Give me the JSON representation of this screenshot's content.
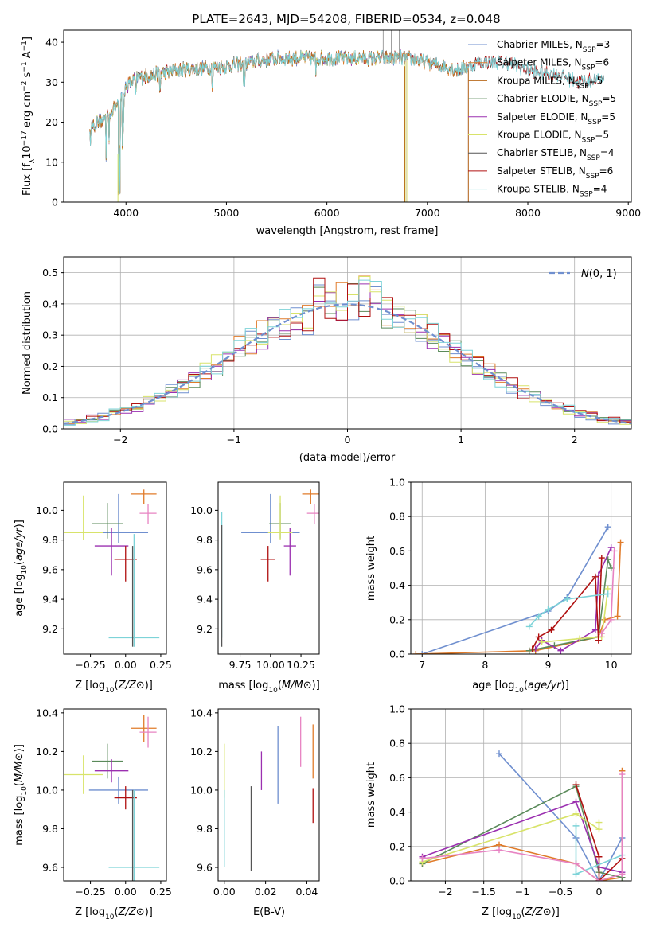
{
  "figure": {
    "title": "PLATE=2643, MJD=54208, FIBERID=0534, z=0.048"
  },
  "colors": {
    "Chabrier MILES": "#6f8fcf",
    "Salpeter MILES": "#e07b2a",
    "Kroupa MILES": "#b86a1c",
    "Chabrier ELODIE": "#5a8a5a",
    "Salpeter ELODIE": "#9b30b0",
    "Kroupa ELODIE": "#d8e36a",
    "Chabrier STELIB": "#555555",
    "Salpeter STELIB": "#b01010",
    "Kroupa STELIB": "#7dd3d8",
    "pink": "#e783c2"
  },
  "chart_data": [
    {
      "type": "line",
      "title": "PLATE=2643, MJD=54208, FIBERID=0534, z=0.048",
      "xlabel": "wavelength [Angstrom, rest frame]",
      "ylabel_parts": [
        "Flux [f",
        "λ",
        "10",
        "−17",
        " erg cm",
        "−2",
        " s",
        "−1",
        " A",
        "−1",
        "]"
      ],
      "xlim": [
        3380,
        9030
      ],
      "ylim": [
        0,
        43
      ],
      "xticks": [
        4000,
        5000,
        6000,
        7000,
        8000,
        9000
      ],
      "yticks": [
        0,
        10,
        20,
        30,
        40
      ],
      "legend_position": "top-right",
      "legend": [
        {
          "model": "Chabrier MILES",
          "n": "3"
        },
        {
          "model": "Salpeter MILES",
          "n": "6"
        },
        {
          "model": "Kroupa MILES",
          "n": "5"
        },
        {
          "model": "Chabrier ELODIE",
          "n": "5"
        },
        {
          "model": "Salpeter ELODIE",
          "n": "5"
        },
        {
          "model": "Kroupa ELODIE",
          "n": "5"
        },
        {
          "model": "Chabrier STELIB",
          "n": "4"
        },
        {
          "model": "Salpeter STELIB",
          "n": "6"
        },
        {
          "model": "Kroupa STELIB",
          "n": "4"
        }
      ],
      "spectrum_continuum": {
        "x": [
          3640,
          3800,
          3900,
          3950,
          4000,
          4100,
          4300,
          4500,
          5000,
          5500,
          6000,
          6500,
          6800,
          7000,
          7300,
          7500,
          7800,
          8000,
          8300,
          8500,
          8760
        ],
        "y": [
          19,
          21,
          24,
          26,
          29,
          31,
          32,
          33,
          34,
          36,
          36,
          36,
          36,
          35,
          33,
          35,
          35,
          33,
          32,
          30,
          31
        ]
      },
      "spectrum_ends": {
        "Chabrier MILES": 7410,
        "Salpeter MILES": 7410,
        "Kroupa MILES": 7410,
        "Chabrier ELODIE": 6800,
        "Salpeter ELODIE": 6800,
        "Kroupa ELODIE": 6800,
        "Chabrier STELIB": 8760,
        "Salpeter STELIB": 8760,
        "Kroupa STELIB": 8760
      }
    },
    {
      "type": "line",
      "xlabel": "(data-model)/error",
      "ylabel": "Normed distribution",
      "xlim": [
        -2.5,
        2.5
      ],
      "ylim": [
        0,
        0.55
      ],
      "xticks": [
        -2,
        -1,
        0,
        1,
        2
      ],
      "yticks": [
        0.0,
        0.1,
        0.2,
        0.3,
        0.4,
        0.5
      ],
      "legend_position": "top-right",
      "legend": [
        {
          "name": "N(0,1)"
        }
      ],
      "bin_width": 0.1,
      "series": [
        "Chabrier MILES",
        "Salpeter MILES",
        "Chabrier ELODIE",
        "Salpeter ELODIE",
        "Kroupa ELODIE",
        "Salpeter STELIB",
        "Kroupa STELIB"
      ]
    },
    {
      "type": "scatter",
      "xlabel": "Z [log10(Z/Z⊙)]",
      "ylabel": "age [log10(age/yr)]",
      "xlim": [
        -0.44,
        0.29
      ],
      "ylim": [
        9.03,
        10.19
      ],
      "xticks": [
        -0.25,
        0.0,
        0.25
      ],
      "yticks": [
        9.2,
        9.4,
        9.6,
        9.8,
        10.0
      ],
      "points": [
        {
          "model": "Chabrier MILES",
          "x": -0.05,
          "y": 9.85,
          "xerr": 0.21,
          "yerr_lo": 0.07,
          "yerr_hi": 0.26
        },
        {
          "model": "Salpeter MILES",
          "x": 0.13,
          "y": 10.11,
          "xerr": 0.09,
          "yerr_lo": 0.07,
          "yerr_hi": 0.03
        },
        {
          "model": "Chabrier ELODIE",
          "x": -0.13,
          "y": 9.91,
          "xerr": 0.11,
          "yerr_lo": 0.1,
          "yerr_hi": 0.14
        },
        {
          "model": "Salpeter ELODIE",
          "x": -0.1,
          "y": 9.76,
          "xerr": 0.12,
          "yerr_lo": 0.2,
          "yerr_hi": 0.12
        },
        {
          "model": "Kroupa ELODIE",
          "x": -0.3,
          "y": 9.85,
          "xerr": 0.14,
          "yerr_lo": 0.05,
          "yerr_hi": 0.25
        },
        {
          "model": "Salpeter STELIB",
          "x": 0.0,
          "y": 9.67,
          "xerr": 0.08,
          "yerr_lo": 0.15,
          "yerr_hi": 0.09
        },
        {
          "model": "Kroupa STELIB",
          "x": 0.06,
          "y": 9.14,
          "xerr": 0.18,
          "yerr_lo": 0.06,
          "yerr_hi": 0.7
        },
        {
          "model": "Chabrier STELIB",
          "x": 0.05,
          "y": 9.14,
          "xerr": 0.0,
          "yerr_lo": 0.06,
          "yerr_hi": 0.62
        },
        {
          "model": "pink",
          "x": 0.16,
          "y": 9.98,
          "xerr": 0.06,
          "yerr_lo": 0.07,
          "yerr_hi": 0.06
        }
      ]
    },
    {
      "type": "scatter",
      "xlabel": "mass [log10(M/M⊙)]",
      "xlim": [
        9.57,
        10.4
      ],
      "ylim": [
        9.03,
        10.19
      ],
      "xticks": [
        9.75,
        10.0,
        10.25
      ],
      "yticks": [
        9.2,
        9.4,
        9.6,
        9.8,
        10.0
      ],
      "points": [
        {
          "model": "Chabrier MILES",
          "x": 10.0,
          "y": 9.85,
          "xerr": 0.24,
          "yerr_lo": 0.07,
          "yerr_hi": 0.26
        },
        {
          "model": "Salpeter MILES",
          "x": 10.33,
          "y": 10.11,
          "xerr": 0.07,
          "yerr_lo": 0.07,
          "yerr_hi": 0.03
        },
        {
          "model": "Chabrier ELODIE",
          "x": 10.08,
          "y": 9.91,
          "xerr": 0.09,
          "yerr_lo": 0.1,
          "yerr_hi": 0.14
        },
        {
          "model": "Salpeter ELODIE",
          "x": 10.16,
          "y": 9.76,
          "xerr": 0.05,
          "yerr_lo": 0.2,
          "yerr_hi": 0.12
        },
        {
          "model": "Kroupa ELODIE",
          "x": 10.08,
          "y": 9.85,
          "xerr": 0.1,
          "yerr_lo": 0.05,
          "yerr_hi": 0.25
        },
        {
          "model": "Salpeter STELIB",
          "x": 9.98,
          "y": 9.67,
          "xerr": 0.06,
          "yerr_lo": 0.15,
          "yerr_hi": 0.09
        },
        {
          "model": "Kroupa STELIB",
          "x": 9.6,
          "y": 9.14,
          "xerr": 0.0,
          "yerr_lo": 0.0,
          "yerr_hi": 0.85
        },
        {
          "model": "Chabrier STELIB",
          "x": 9.6,
          "y": 9.14,
          "xerr": 0.0,
          "yerr_lo": 0.06,
          "yerr_hi": 0.76
        },
        {
          "model": "pink",
          "x": 10.36,
          "y": 9.98,
          "xerr": 0.06,
          "yerr_lo": 0.07,
          "yerr_hi": 0.06
        }
      ]
    },
    {
      "type": "line",
      "xlabel": "age [log10(age/yr)]",
      "ylabel": "mass weight",
      "xlim": [
        6.82,
        10.32
      ],
      "ylim": [
        0,
        1.0
      ],
      "xticks": [
        7,
        8,
        9,
        10
      ],
      "yticks": [
        0.0,
        0.2,
        0.4,
        0.6,
        0.8,
        1.0
      ],
      "series": [
        {
          "model": "Chabrier MILES",
          "x": [
            7.0,
            9.0,
            9.3,
            9.95
          ],
          "y": [
            0.0,
            0.25,
            0.33,
            0.74
          ]
        },
        {
          "model": "Salpeter MILES",
          "x": [
            6.9,
            8.8,
            9.8,
            9.9,
            10.1,
            10.15
          ],
          "y": [
            0.0,
            0.02,
            0.1,
            0.2,
            0.22,
            0.65
          ]
        },
        {
          "model": "Chabrier ELODIE",
          "x": [
            8.7,
            9.1,
            9.8,
            9.95,
            10.0
          ],
          "y": [
            0.02,
            0.05,
            0.1,
            0.55,
            0.5
          ]
        },
        {
          "model": "Salpeter ELODIE",
          "x": [
            8.8,
            8.9,
            9.2,
            9.75,
            9.8,
            10.0
          ],
          "y": [
            0.03,
            0.08,
            0.02,
            0.14,
            0.46,
            0.62
          ]
        },
        {
          "model": "Kroupa ELODIE",
          "x": [
            8.9,
            9.5,
            9.85,
            9.95
          ],
          "y": [
            0.07,
            0.09,
            0.1,
            0.38
          ]
        },
        {
          "model": "Salpeter STELIB",
          "x": [
            8.75,
            8.85,
            9.05,
            9.75,
            9.8,
            9.85
          ],
          "y": [
            0.03,
            0.1,
            0.14,
            0.45,
            0.08,
            0.56
          ]
        },
        {
          "model": "Kroupa STELIB",
          "x": [
            8.7,
            8.85,
            9.0,
            9.3,
            9.95
          ],
          "y": [
            0.16,
            0.22,
            0.26,
            0.32,
            0.35
          ]
        },
        {
          "model": "pink",
          "x": [
            9.85,
            10.0,
            10.05
          ],
          "y": [
            0.12,
            0.2,
            0.6
          ]
        }
      ]
    },
    {
      "type": "scatter",
      "xlabel": "Z [log10(Z/Z⊙)]",
      "ylabel": "mass [log10(M/M⊙)]",
      "xlim": [
        -0.44,
        0.29
      ],
      "ylim": [
        9.53,
        10.42
      ],
      "xticks": [
        -0.25,
        0.0,
        0.25
      ],
      "yticks": [
        9.6,
        9.8,
        10.0,
        10.2,
        10.4
      ],
      "points": [
        {
          "model": "Chabrier MILES",
          "x": -0.05,
          "y": 10.0,
          "xerr": 0.21,
          "yerr": 0.07
        },
        {
          "model": "Salpeter MILES",
          "x": 0.13,
          "y": 10.32,
          "xerr": 0.09,
          "yerr": 0.07
        },
        {
          "model": "Chabrier ELODIE",
          "x": -0.13,
          "y": 10.15,
          "xerr": 0.11,
          "yerr": 0.09
        },
        {
          "model": "Salpeter ELODIE",
          "x": -0.1,
          "y": 10.1,
          "xerr": 0.12,
          "yerr": 0.06
        },
        {
          "model": "Kroupa ELODIE",
          "x": -0.3,
          "y": 10.08,
          "xerr": 0.14,
          "yerr": 0.1
        },
        {
          "model": "Salpeter STELIB",
          "x": 0.0,
          "y": 9.96,
          "xerr": 0.08,
          "yerr": 0.06
        },
        {
          "model": "Kroupa STELIB",
          "x": 0.06,
          "y": 9.6,
          "xerr": 0.18,
          "yerr": 0.4
        },
        {
          "model": "Chabrier STELIB",
          "x": 0.05,
          "y": 9.6,
          "xerr": 0.0,
          "yerr": 0.4
        },
        {
          "model": "pink",
          "x": 0.16,
          "y": 10.3,
          "xerr": 0.06,
          "yerr": 0.08
        }
      ]
    },
    {
      "type": "scatter",
      "xlabel": "E(B-V)",
      "xlim": [
        -0.003,
        0.046
      ],
      "ylim": [
        9.53,
        10.42
      ],
      "xticks": [
        0.0,
        0.02,
        0.04
      ],
      "yticks": [
        9.6,
        9.8,
        10.0,
        10.2,
        10.4
      ],
      "points": [
        {
          "model": "Chabrier MILES",
          "x": 0.026,
          "y": 10.13,
          "yerr": 0.2
        },
        {
          "model": "Salpeter MILES",
          "x": 0.043,
          "y": 10.2,
          "yerr": 0.14
        },
        {
          "model": "Salpeter ELODIE",
          "x": 0.018,
          "y": 10.1,
          "yerr": 0.1
        },
        {
          "model": "Kroupa ELODIE",
          "x": 0.0,
          "y": 10.1,
          "yerr": 0.14
        },
        {
          "model": "Salpeter STELIB",
          "x": 0.043,
          "y": 9.92,
          "yerr": 0.09
        },
        {
          "model": "Chabrier STELIB",
          "x": 0.013,
          "y": 9.8,
          "yerr": 0.22
        },
        {
          "model": "Kroupa STELIB",
          "x": 0.0,
          "y": 9.8,
          "yerr": 0.2
        },
        {
          "model": "pink",
          "x": 0.037,
          "y": 10.25,
          "yerr": 0.13
        }
      ]
    },
    {
      "type": "line",
      "xlabel": "Z [log10(Z/Z⊙)]",
      "ylabel": "mass weight",
      "xlim": [
        -2.45,
        0.42
      ],
      "ylim": [
        0,
        1.0
      ],
      "xticks": [
        -2.0,
        -1.5,
        -1.0,
        -0.5,
        0.0
      ],
      "yticks": [
        0.0,
        0.2,
        0.4,
        0.6,
        0.8,
        1.0
      ],
      "series": [
        {
          "model": "Chabrier MILES",
          "x": [
            -1.3,
            -0.3,
            0.0,
            0.3
          ],
          "y": [
            0.74,
            0.25,
            0.0,
            0.25
          ]
        },
        {
          "model": "Salpeter MILES",
          "x": [
            -2.3,
            -1.3,
            -0.3,
            0.0,
            0.3,
            0.3
          ],
          "y": [
            0.1,
            0.21,
            0.1,
            0.0,
            0.02,
            0.64
          ]
        },
        {
          "model": "Chabrier ELODIE",
          "x": [
            -2.3,
            -0.3,
            0.0,
            0.3
          ],
          "y": [
            0.1,
            0.55,
            0.05,
            0.02
          ]
        },
        {
          "model": "Salpeter ELODIE",
          "x": [
            -2.3,
            -0.3,
            0.0,
            0.3
          ],
          "y": [
            0.14,
            0.46,
            0.08,
            0.05
          ]
        },
        {
          "model": "Kroupa ELODIE",
          "x": [
            -2.3,
            -0.3,
            0.0,
            0.0
          ],
          "y": [
            0.11,
            0.39,
            0.3,
            0.34
          ]
        },
        {
          "model": "Salpeter STELIB",
          "x": [
            -0.3,
            0.0,
            0.0,
            0.3
          ],
          "y": [
            0.56,
            0.14,
            0.0,
            0.13
          ]
        },
        {
          "model": "Kroupa STELIB",
          "x": [
            -0.3,
            -0.3,
            0.3
          ],
          "y": [
            0.32,
            0.04,
            0.15
          ]
        },
        {
          "model": "pink",
          "x": [
            -2.3,
            -1.3,
            -0.3,
            0.0,
            0.3,
            0.3
          ],
          "y": [
            0.13,
            0.18,
            0.1,
            0.0,
            0.04,
            0.62
          ]
        }
      ]
    }
  ]
}
